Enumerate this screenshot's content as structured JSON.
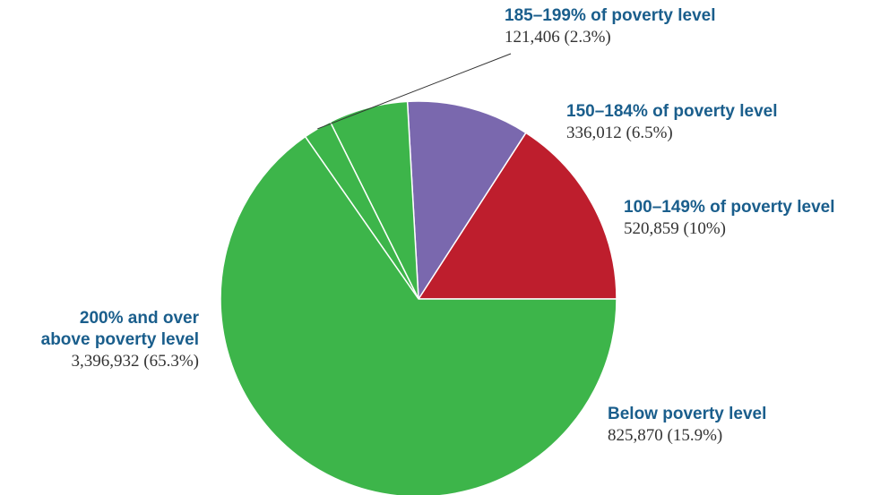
{
  "chart_data": {
    "type": "pie",
    "slices": [
      {
        "label": "Below poverty level",
        "value": 825870,
        "percent": 15.9,
        "value_text": "825,870 (15.9%)",
        "color": "#be1e2d"
      },
      {
        "label": "100–149% of poverty level",
        "value": 520859,
        "percent": 10,
        "value_text": "520,859 (10%)",
        "color": "#7a68ae"
      },
      {
        "label": "150–184% of poverty level",
        "value": 336012,
        "percent": 6.5,
        "value_text": "336,012 (6.5%)",
        "color": "#3db54a"
      },
      {
        "label": "185–199% of poverty level",
        "value": 121406,
        "percent": 2.3,
        "value_text": "121,406 (2.3%)",
        "color": "#3db54a"
      },
      {
        "label_lines": [
          "200% and over",
          "above poverty level"
        ],
        "value": 3396932,
        "percent": 65.3,
        "value_text": "3,396,932 (65.3%)",
        "color": "#3db54a"
      }
    ],
    "direction": "counterclockwise",
    "start": "east"
  }
}
